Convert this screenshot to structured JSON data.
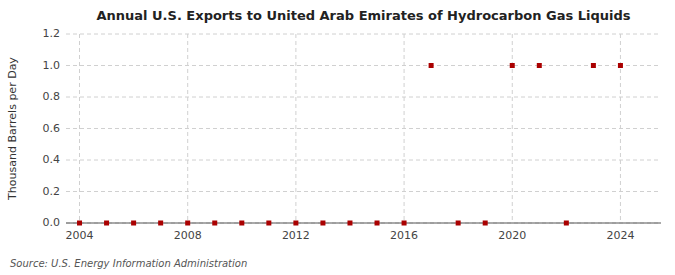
{
  "chart_data": {
    "type": "scatter",
    "title": "Annual U.S. Exports to United Arab Emirates of Hydrocarbon Gas Liquids",
    "y_label": "Thousand Barrels per Day",
    "source": "Source: U.S. Energy Information Administration",
    "x": [
      2004,
      2005,
      2006,
      2007,
      2008,
      2009,
      2010,
      2011,
      2012,
      2013,
      2014,
      2015,
      2016,
      2017,
      2018,
      2019,
      2020,
      2021,
      2022,
      2023,
      2024
    ],
    "values": [
      0,
      0,
      0,
      0,
      0,
      0,
      0,
      0,
      0,
      0,
      0,
      0,
      0,
      1.0,
      0,
      0,
      1.0,
      1.0,
      0,
      1.0,
      1.0
    ],
    "color": "#aa0000",
    "marker": "square",
    "xlim": [
      2003.5,
      2025.5
    ],
    "ylim": [
      0,
      1.2
    ],
    "xticks": [
      2004,
      2008,
      2012,
      2016,
      2020,
      2024
    ],
    "yticks": [
      {
        "value": 0.0,
        "label": "0.0"
      },
      0.2,
      0.4,
      0.6,
      0.8,
      {
        "value": 1.0,
        "label": "1.0"
      },
      1.2
    ],
    "grid": true
  }
}
